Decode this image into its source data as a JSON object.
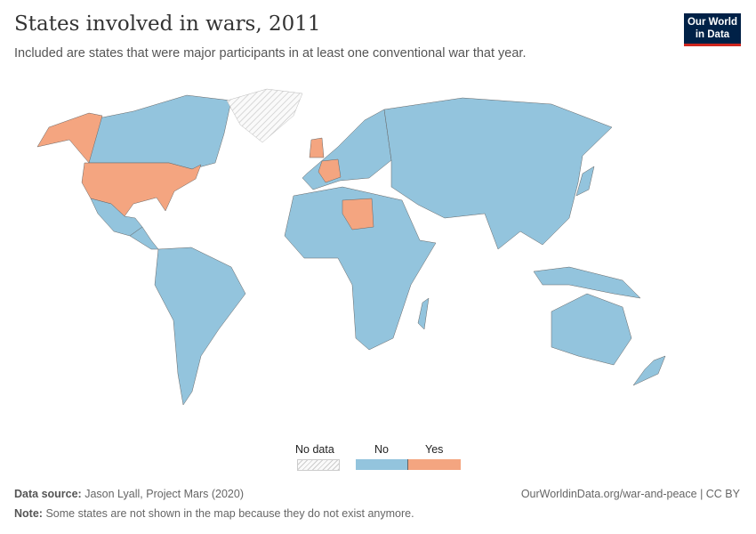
{
  "header": {
    "title": "States involved in wars, 2011",
    "subtitle": "Included are states that were major participants in at least one conventional war that year.",
    "logo_line1": "Our World",
    "logo_line2": "in Data"
  },
  "colors": {
    "no": "#93c4dd",
    "yes": "#f4a580",
    "no_data": "hatched-gray",
    "border": "#666"
  },
  "map": {
    "yes_countries": [
      "United States",
      "United Kingdom",
      "France",
      "Libya"
    ],
    "no_data_regions": [
      "Greenland"
    ]
  },
  "legend": {
    "no_data": "No data",
    "no": "No",
    "yes": "Yes"
  },
  "footer": {
    "source_label": "Data source:",
    "source": "Jason Lyall, Project Mars (2020)",
    "url": "OurWorldinData.org/war-and-peace | CC BY",
    "note_label": "Note:",
    "note": "Some states are not shown in the map because they do not exist anymore."
  }
}
